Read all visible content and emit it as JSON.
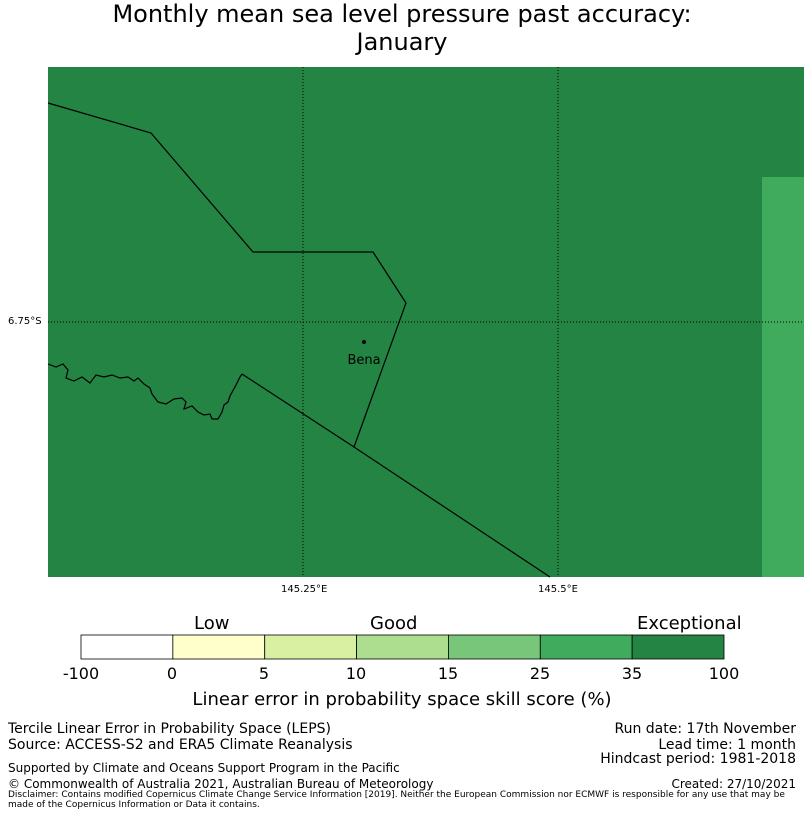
{
  "title": {
    "line1": "Monthly mean sea level pressure past accuracy:",
    "line2": "January"
  },
  "map": {
    "lat_label": "6.75°S",
    "lon_labels": [
      "145.25°E",
      "145.5°E"
    ],
    "place": "Bena",
    "colors": {
      "exceptional": "#238443",
      "skill_25_35": "#41ab5d",
      "border": "#000000",
      "grid": "#000000"
    }
  },
  "legend": {
    "categories": [
      "Low",
      "Good",
      "Exceptional"
    ],
    "ticks": [
      "-100",
      "0",
      "5",
      "10",
      "15",
      "25",
      "35",
      "100"
    ],
    "bins": [
      {
        "from": -100,
        "to": 0,
        "color": "#ffffff"
      },
      {
        "from": 0,
        "to": 5,
        "color": "#ffffcc"
      },
      {
        "from": 5,
        "to": 10,
        "color": "#d9f0a3"
      },
      {
        "from": 10,
        "to": 15,
        "color": "#addd8e"
      },
      {
        "from": 15,
        "to": 25,
        "color": "#78c679"
      },
      {
        "from": 25,
        "to": 35,
        "color": "#41ab5d"
      },
      {
        "from": 35,
        "to": 100,
        "color": "#238443"
      }
    ],
    "axis_label": "Linear error in probability space skill score (%)"
  },
  "footer": {
    "method": "Tercile Linear Error in Probability Space (LEPS)",
    "source": "Source: ACCESS-S2 and ERA5 Climate Reanalysis",
    "run_date": "Run date: 17th November",
    "lead_time": "Lead time: 1 month",
    "hindcast": "Hindcast period: 1981-2018",
    "support": "Supported by Climate and Oceans Support Program in the Pacific",
    "copyright": "© Commonwealth of Australia 2021, Australian Bureau of Meteorology",
    "created": "Created: 27/10/2021",
    "disclaimer": "Disclaimer: Contains modified Copernicus Climate Change Service Information [2019]. Neither the European Commission nor ECMWF is responsible for any use that may be made of the Copernicus Information or Data it contains."
  }
}
